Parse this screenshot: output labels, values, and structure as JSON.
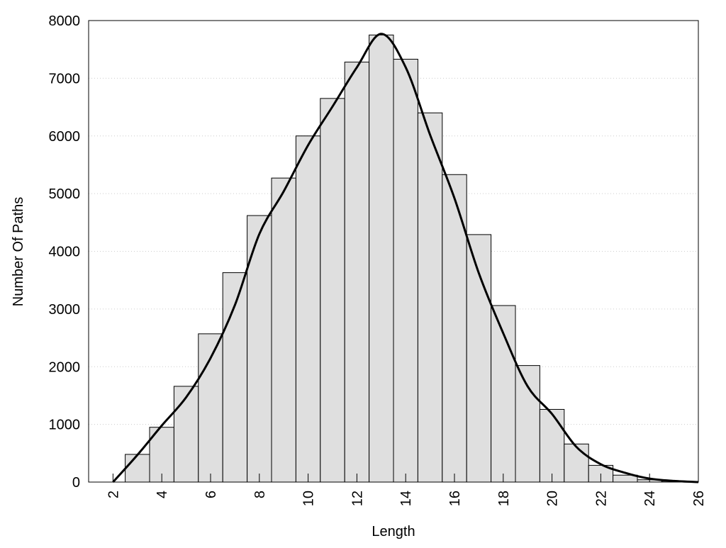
{
  "chart_data": {
    "type": "histogram",
    "x_label": "Length",
    "y_label": "Number Of Paths",
    "bins": [
      2.5,
      3.5,
      4.5,
      5.5,
      6.5,
      7.5,
      8.5,
      9.5,
      10.5,
      11.5,
      12.5,
      13.5,
      14.5,
      15.5,
      16.5,
      17.5,
      18.5,
      19.5,
      20.5,
      21.5,
      22.5,
      23.5,
      24.5,
      25.5
    ],
    "counts": [
      480,
      950,
      1660,
      2570,
      3630,
      4620,
      5270,
      6000,
      6650,
      7280,
      7750,
      7330,
      6400,
      5330,
      4290,
      3060,
      2020,
      1260,
      660,
      290,
      120,
      40,
      15
    ],
    "color": "#dfdfdf",
    "curve": {
      "color": "#000000",
      "x": [
        2,
        3,
        4,
        5,
        6,
        7,
        8,
        9,
        10,
        11,
        12,
        13,
        14,
        15,
        16,
        17,
        18,
        19,
        20,
        21,
        22,
        23,
        24,
        25,
        26
      ],
      "values": [
        0,
        470,
        980,
        1470,
        2150,
        3070,
        4300,
        5040,
        5840,
        6510,
        7190,
        7770,
        7190,
        6020,
        4920,
        3620,
        2580,
        1660,
        1180,
        610,
        310,
        160,
        60,
        20,
        0
      ]
    },
    "xlim": [
      1,
      26
    ],
    "xticks": [
      2,
      4,
      6,
      8,
      10,
      12,
      14,
      16,
      18,
      20,
      22,
      24,
      26
    ],
    "ylim": [
      0,
      8000
    ],
    "yticks": [
      0,
      1000,
      2000,
      3000,
      4000,
      5000,
      6000,
      7000,
      8000
    ],
    "grid": true
  }
}
